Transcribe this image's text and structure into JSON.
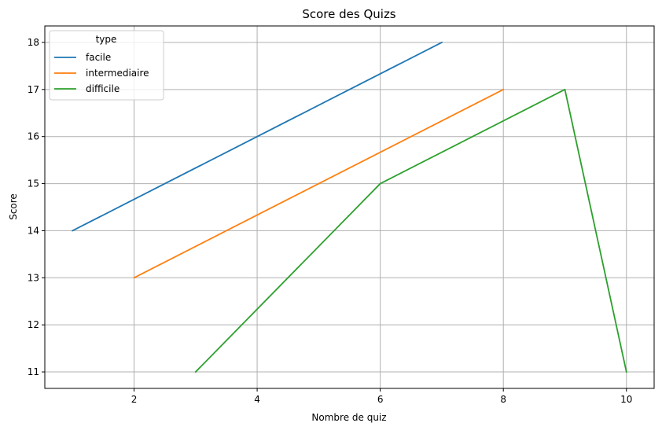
{
  "chart_data": {
    "type": "line",
    "title": "Score des Quizs",
    "xlabel": "Nombre de quiz",
    "ylabel": "Score",
    "xlim": [
      0.55,
      10.45
    ],
    "ylim": [
      10.65,
      18.35
    ],
    "xticks": [
      2,
      4,
      6,
      8,
      10
    ],
    "yticks": [
      11,
      12,
      13,
      14,
      15,
      16,
      17,
      18
    ],
    "grid": true,
    "legend": {
      "title": "type",
      "placement": "top-left"
    },
    "series": [
      {
        "name": "facile",
        "color": "#1f77b4",
        "x": [
          1,
          7
        ],
        "y": [
          14,
          18
        ]
      },
      {
        "name": "intermediaire",
        "color": "#ff7f0e",
        "x": [
          2,
          8
        ],
        "y": [
          13,
          17
        ]
      },
      {
        "name": "difficile",
        "color": "#2ca02c",
        "x": [
          3,
          6,
          9,
          10
        ],
        "y": [
          11,
          15,
          17,
          11
        ]
      }
    ]
  }
}
